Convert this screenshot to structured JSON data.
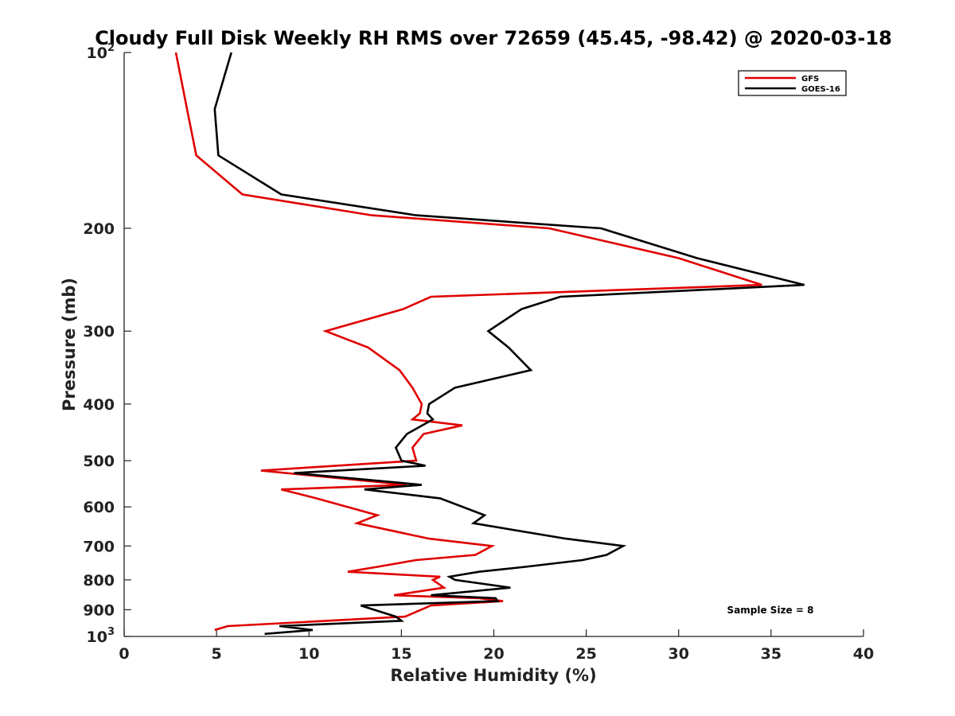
{
  "chart_data": {
    "type": "line",
    "title": "Cloudy Full Disk Weekly RH RMS over 72659 (45.45, -98.42) @ 2020-03-18",
    "xlabel": "Relative Humidity (%)",
    "ylabel": "Pressure (mb)",
    "xlim": [
      0,
      40
    ],
    "ylim": [
      100,
      1000
    ],
    "y_scale": "log",
    "y_reversed": true,
    "x_ticks": [
      "0",
      "5",
      "10",
      "15",
      "20",
      "25",
      "30",
      "35",
      "40"
    ],
    "y_ticks": [
      {
        "value": 100,
        "base": "10",
        "exp": "2"
      },
      {
        "value": 200,
        "label": "200"
      },
      {
        "value": 300,
        "label": "300"
      },
      {
        "value": 400,
        "label": "400"
      },
      {
        "value": 500,
        "label": "500"
      },
      {
        "value": 600,
        "label": "600"
      },
      {
        "value": 700,
        "label": "700"
      },
      {
        "value": 800,
        "label": "800"
      },
      {
        "value": 900,
        "label": "900"
      },
      {
        "value": 1000,
        "base": "10",
        "exp": "3"
      }
    ],
    "legend_position": "top-right",
    "annotation": "Sample Size = 8",
    "series": [
      {
        "name": "GFS",
        "color": "#e00000",
        "points": [
          [
            2.8,
            100
          ],
          [
            3.4,
            125
          ],
          [
            3.9,
            150
          ],
          [
            6.4,
            175
          ],
          [
            13.4,
            190
          ],
          [
            23.0,
            200
          ],
          [
            30.0,
            225
          ],
          [
            34.5,
            250
          ],
          [
            16.6,
            262
          ],
          [
            15.1,
            275
          ],
          [
            10.9,
            300
          ],
          [
            13.2,
            320
          ],
          [
            14.9,
            350
          ],
          [
            15.6,
            375
          ],
          [
            16.1,
            400
          ],
          [
            16.0,
            415
          ],
          [
            15.6,
            425
          ],
          [
            18.3,
            435
          ],
          [
            16.2,
            450
          ],
          [
            15.6,
            475
          ],
          [
            15.8,
            500
          ],
          [
            7.4,
            520
          ],
          [
            15.3,
            550
          ],
          [
            8.5,
            560
          ],
          [
            10.4,
            580
          ],
          [
            13.7,
            620
          ],
          [
            12.6,
            640
          ],
          [
            16.5,
            680
          ],
          [
            19.9,
            700
          ],
          [
            19.0,
            725
          ],
          [
            15.8,
            740
          ],
          [
            13.7,
            760
          ],
          [
            12.1,
            775
          ],
          [
            17.1,
            790
          ],
          [
            16.7,
            800
          ],
          [
            17.3,
            825
          ],
          [
            14.6,
            850
          ],
          [
            19.2,
            860
          ],
          [
            20.5,
            870
          ],
          [
            16.6,
            885
          ],
          [
            15.2,
            925
          ],
          [
            5.6,
            960
          ],
          [
            4.9,
            975
          ]
        ]
      },
      {
        "name": "GOES-16",
        "color": "#000000",
        "points": [
          [
            5.8,
            100
          ],
          [
            4.9,
            125
          ],
          [
            5.1,
            150
          ],
          [
            8.5,
            175
          ],
          [
            15.8,
            190
          ],
          [
            25.8,
            200
          ],
          [
            31.0,
            225
          ],
          [
            36.8,
            250
          ],
          [
            23.6,
            262
          ],
          [
            21.5,
            275
          ],
          [
            19.7,
            300
          ],
          [
            20.8,
            320
          ],
          [
            22.0,
            350
          ],
          [
            17.9,
            375
          ],
          [
            16.5,
            400
          ],
          [
            16.4,
            415
          ],
          [
            16.7,
            425
          ],
          [
            15.3,
            450
          ],
          [
            14.7,
            475
          ],
          [
            15.0,
            500
          ],
          [
            16.3,
            510
          ],
          [
            9.2,
            525
          ],
          [
            16.1,
            550
          ],
          [
            13.0,
            560
          ],
          [
            17.1,
            580
          ],
          [
            19.5,
            620
          ],
          [
            18.9,
            640
          ],
          [
            23.9,
            680
          ],
          [
            27.0,
            700
          ],
          [
            26.1,
            725
          ],
          [
            24.8,
            740
          ],
          [
            21.7,
            760
          ],
          [
            19.2,
            775
          ],
          [
            17.6,
            790
          ],
          [
            17.9,
            800
          ],
          [
            20.9,
            825
          ],
          [
            16.6,
            850
          ],
          [
            20.1,
            860
          ],
          [
            20.2,
            870
          ],
          [
            12.8,
            885
          ],
          [
            14.7,
            925
          ],
          [
            15.0,
            940
          ],
          [
            8.4,
            960
          ],
          [
            10.2,
            975
          ],
          [
            7.6,
            990
          ]
        ]
      }
    ]
  }
}
